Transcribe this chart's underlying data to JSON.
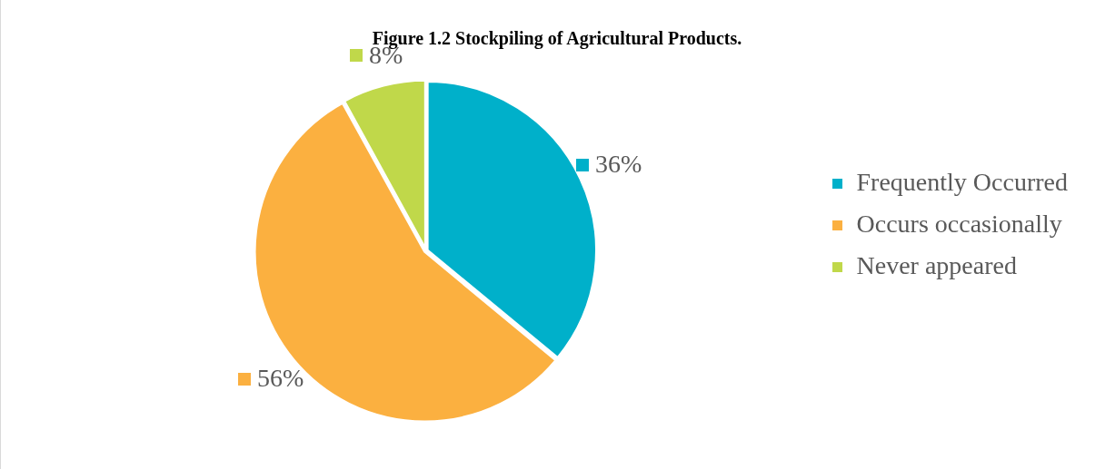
{
  "chart_data": {
    "type": "pie",
    "title": "Figure 1.2 Stockpiling of Agricultural Products.",
    "categories": [
      "Frequently Occurred",
      "Occurs occasionally",
      "Never appeared"
    ],
    "values": [
      36,
      56,
      8
    ],
    "colors": [
      "#00b0ca",
      "#fbb040",
      "#c0d84a"
    ],
    "value_labels": [
      "36%",
      "56%",
      "8%"
    ],
    "legend": "right"
  }
}
